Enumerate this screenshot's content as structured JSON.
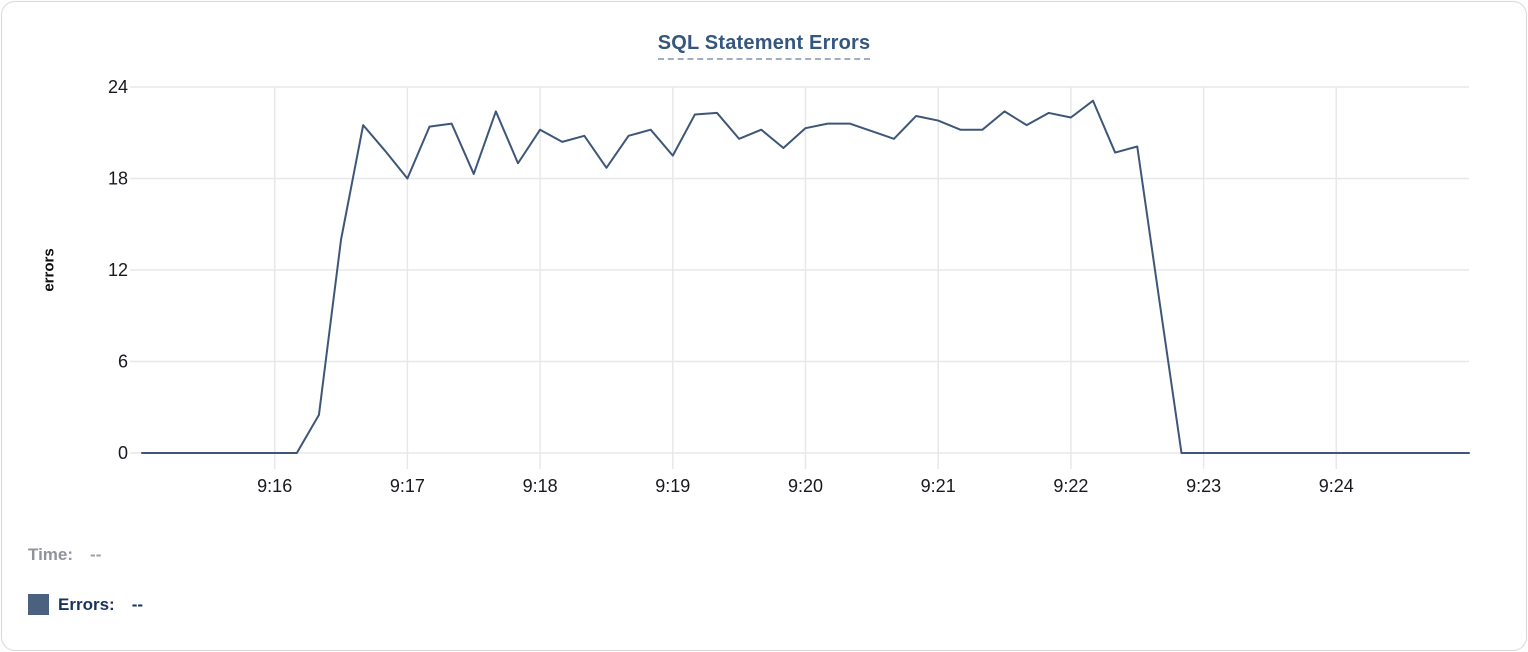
{
  "chart_data": {
    "type": "line",
    "title": "SQL Statement Errors",
    "xlabel": "",
    "ylabel": "errors",
    "ylim": [
      0,
      24
    ],
    "yticks": [
      0,
      6,
      12,
      18,
      24
    ],
    "grid": true,
    "legend_position": "bottom-left",
    "x_range": [
      "9:15:00",
      "9:25:00"
    ],
    "interval_seconds": 10,
    "xticks": [
      {
        "index": 6,
        "label": "9:16"
      },
      {
        "index": 12,
        "label": "9:17"
      },
      {
        "index": 18,
        "label": "9:18"
      },
      {
        "index": 24,
        "label": "9:19"
      },
      {
        "index": 30,
        "label": "9:20"
      },
      {
        "index": 36,
        "label": "9:21"
      },
      {
        "index": 42,
        "label": "9:22"
      },
      {
        "index": 48,
        "label": "9:23"
      },
      {
        "index": 54,
        "label": "9:24"
      }
    ],
    "series": [
      {
        "name": "Errors",
        "color": "#3e5677",
        "values": [
          0,
          0,
          0,
          0,
          0,
          0,
          0,
          0,
          2.5,
          14,
          21.5,
          19.8,
          18,
          21.4,
          21.6,
          18.3,
          22.4,
          19,
          21.2,
          20.4,
          20.8,
          18.7,
          20.8,
          21.2,
          19.5,
          22.2,
          22.3,
          20.6,
          21.2,
          20,
          21.3,
          21.6,
          21.6,
          21.1,
          20.6,
          22.1,
          21.8,
          21.2,
          21.2,
          22.4,
          21.5,
          22.3,
          22,
          23.1,
          19.7,
          20.1,
          10,
          0,
          0,
          0,
          0,
          0,
          0,
          0,
          0,
          0,
          0,
          0,
          0,
          0,
          0
        ]
      }
    ]
  },
  "readout": {
    "time_label": "Time:",
    "time_value": "--",
    "errors_label": "Errors:",
    "errors_value": "--"
  },
  "colors": {
    "line": "#3e5677",
    "title": "#35567f",
    "title_underline": "#a2aec0",
    "grid": "#e8e8ea",
    "legend_swatch": "#4a627f",
    "axis_tick_text": "#17191e",
    "time_text": "#8f939b",
    "errors_text": "#17335e",
    "card_border": "#d9d9dc"
  }
}
